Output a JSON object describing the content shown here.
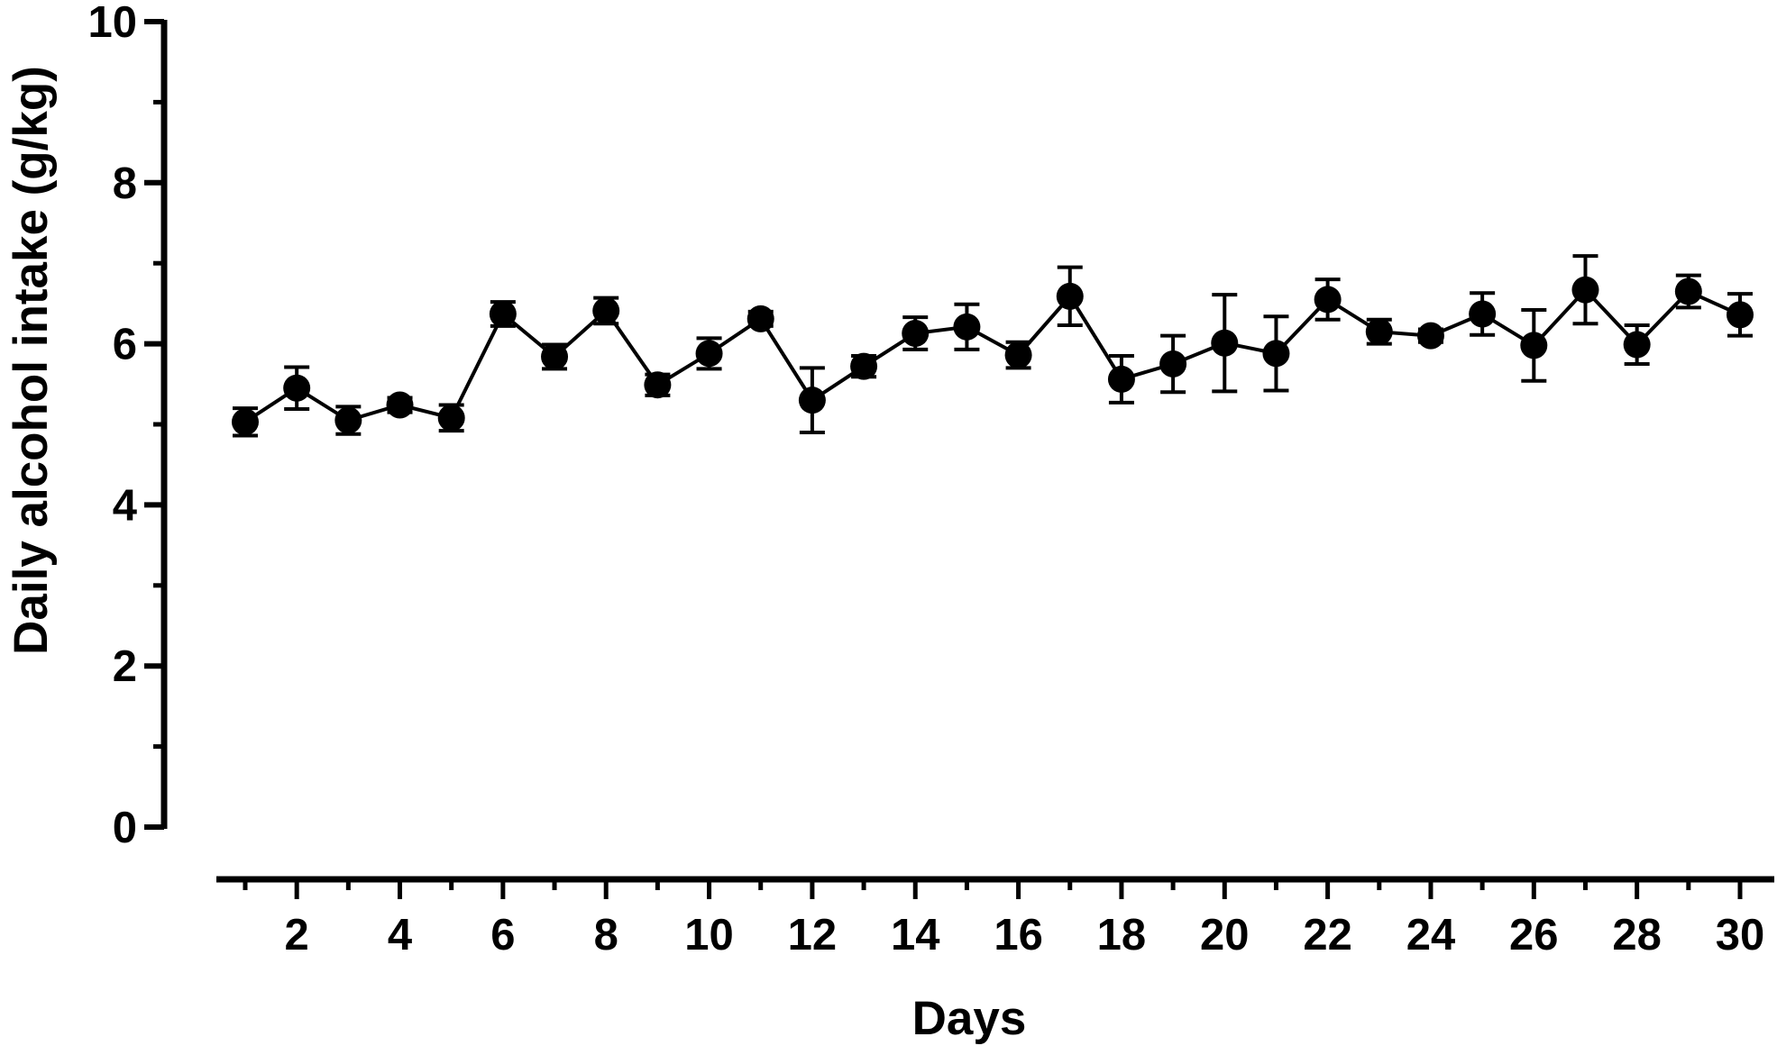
{
  "chart_data": {
    "type": "line",
    "title": "",
    "xlabel": "Days",
    "ylabel": "Daily alcohol intake (g/kg)",
    "xlim": [
      0.5,
      30.6
    ],
    "ylim": [
      0,
      10
    ],
    "x_ticks": [
      2,
      4,
      6,
      8,
      10,
      12,
      14,
      16,
      18,
      20,
      22,
      24,
      26,
      28,
      30
    ],
    "y_ticks": [
      0,
      2,
      4,
      6,
      8,
      10
    ],
    "grid": false,
    "legend": "none",
    "color": "#000000",
    "series": [
      {
        "x": [
          1,
          2,
          3,
          4,
          5,
          6,
          7,
          8,
          9,
          10,
          11,
          12,
          13,
          14,
          15,
          16,
          17,
          18,
          19,
          20,
          21,
          22,
          23,
          24,
          25,
          26,
          27,
          28,
          29,
          30
        ],
        "values": [
          5.03,
          5.45,
          5.05,
          5.24,
          5.08,
          6.37,
          5.84,
          6.41,
          5.49,
          5.88,
          6.31,
          5.3,
          5.72,
          6.13,
          6.21,
          5.86,
          6.59,
          5.56,
          5.75,
          6.01,
          5.88,
          6.55,
          6.15,
          6.1,
          6.37,
          5.98,
          6.67,
          5.99,
          6.65,
          6.36
        ],
        "error": [
          0.17,
          0.26,
          0.17,
          0.09,
          0.16,
          0.15,
          0.15,
          0.16,
          0.13,
          0.19,
          0.09,
          0.4,
          0.13,
          0.2,
          0.28,
          0.16,
          0.36,
          0.29,
          0.35,
          0.6,
          0.46,
          0.25,
          0.15,
          0.08,
          0.26,
          0.44,
          0.42,
          0.24,
          0.2,
          0.26
        ]
      }
    ]
  }
}
